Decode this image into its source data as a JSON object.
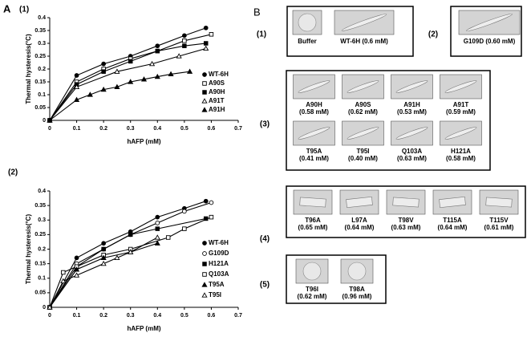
{
  "panel_a": {
    "label": "A"
  },
  "chart_data": [
    {
      "type": "scatter",
      "title": "(1)",
      "xlabel": "hAFP (mM)",
      "ylabel": "Thermal hysteresis(°C)",
      "xlim": [
        0,
        0.7
      ],
      "xticks": [
        0,
        0.1,
        0.2,
        0.3,
        0.4,
        0.5,
        0.6,
        0.7
      ],
      "ylim": [
        0,
        0.4
      ],
      "yticks": [
        0,
        0.05,
        0.1,
        0.15,
        0.2,
        0.25,
        0.3,
        0.35,
        0.4
      ],
      "legend": "lower right",
      "series": [
        {
          "name": "WT-6H",
          "color": "#000000",
          "marker": "circle",
          "filled": true,
          "x": [
            0,
            0.1,
            0.2,
            0.3,
            0.4,
            0.5,
            0.58
          ],
          "values": [
            0,
            0.175,
            0.22,
            0.25,
            0.29,
            0.33,
            0.36
          ]
        },
        {
          "name": "A90S",
          "color": "#000000",
          "marker": "square",
          "filled": false,
          "x": [
            0,
            0.1,
            0.2,
            0.3,
            0.4,
            0.5,
            0.6
          ],
          "values": [
            0,
            0.15,
            0.2,
            0.24,
            0.27,
            0.31,
            0.335
          ]
        },
        {
          "name": "A90H",
          "color": "#000000",
          "marker": "square",
          "filled": true,
          "x": [
            0,
            0.1,
            0.2,
            0.3,
            0.4,
            0.5,
            0.58
          ],
          "values": [
            0,
            0.14,
            0.19,
            0.23,
            0.27,
            0.29,
            0.3
          ]
        },
        {
          "name": "A91T",
          "color": "#000000",
          "marker": "triangle",
          "filled": false,
          "x": [
            0,
            0.1,
            0.25,
            0.38,
            0.48,
            0.58
          ],
          "values": [
            0,
            0.13,
            0.19,
            0.22,
            0.25,
            0.28
          ]
        },
        {
          "name": "A91H",
          "color": "#000000",
          "marker": "triangle",
          "filled": true,
          "x": [
            0,
            0.1,
            0.15,
            0.2,
            0.25,
            0.3,
            0.35,
            0.4,
            0.45,
            0.52
          ],
          "values": [
            0,
            0.08,
            0.1,
            0.12,
            0.13,
            0.15,
            0.16,
            0.17,
            0.18,
            0.19
          ]
        }
      ]
    },
    {
      "type": "scatter",
      "title": "(2)",
      "xlabel": "hAFP (mM)",
      "ylabel": "Thermal hysteresis(°C)",
      "xlim": [
        0,
        0.7
      ],
      "xticks": [
        0,
        0.1,
        0.2,
        0.3,
        0.4,
        0.5,
        0.6,
        0.7
      ],
      "ylim": [
        0,
        0.4
      ],
      "yticks": [
        0,
        0.05,
        0.1,
        0.15,
        0.2,
        0.25,
        0.3,
        0.35,
        0.4
      ],
      "legend": "lower right",
      "series": [
        {
          "name": "WT-6H",
          "color": "#000000",
          "marker": "circle",
          "filled": true,
          "x": [
            0,
            0.1,
            0.2,
            0.3,
            0.4,
            0.5,
            0.58
          ],
          "values": [
            0,
            0.17,
            0.22,
            0.26,
            0.31,
            0.34,
            0.365
          ]
        },
        {
          "name": "G109D",
          "color": "#000000",
          "marker": "circle",
          "filled": false,
          "x": [
            0,
            0.1,
            0.2,
            0.3,
            0.4,
            0.5,
            0.6
          ],
          "values": [
            0,
            0.15,
            0.2,
            0.25,
            0.29,
            0.33,
            0.36
          ]
        },
        {
          "name": "H121A",
          "color": "#000000",
          "marker": "square",
          "filled": true,
          "x": [
            0,
            0.1,
            0.2,
            0.3,
            0.4,
            0.58
          ],
          "values": [
            0,
            0.14,
            0.2,
            0.25,
            0.27,
            0.305
          ]
        },
        {
          "name": "Q103A",
          "color": "#000000",
          "marker": "square",
          "filled": false,
          "x": [
            0,
            0.05,
            0.1,
            0.2,
            0.3,
            0.44,
            0.5,
            0.6
          ],
          "values": [
            0,
            0.12,
            0.14,
            0.18,
            0.2,
            0.24,
            0.27,
            0.31
          ]
        },
        {
          "name": "T95A",
          "color": "#000000",
          "marker": "triangle",
          "filled": true,
          "x": [
            0,
            0.1,
            0.2,
            0.3,
            0.4
          ],
          "values": [
            0,
            0.13,
            0.17,
            0.19,
            0.22
          ]
        },
        {
          "name": "T95I",
          "color": "#000000",
          "marker": "triangle",
          "filled": false,
          "x": [
            0,
            0.05,
            0.1,
            0.2,
            0.25,
            0.3,
            0.4
          ],
          "values": [
            0,
            0.09,
            0.11,
            0.15,
            0.17,
            0.19,
            0.24
          ]
        }
      ]
    }
  ],
  "panel_b": {
    "label": "B",
    "groups": [
      {
        "label": "(1)",
        "items": [
          {
            "name": "Buffer"
          },
          {
            "name": "WT-6H",
            "conc": "(0.6 mM)"
          }
        ]
      },
      {
        "label": "(2)",
        "items": [
          {
            "name": "G109D",
            "conc": "(0.60 mM)"
          }
        ]
      },
      {
        "label": "(3)",
        "items": [
          {
            "name": "A90H",
            "conc": "(0.58 mM)"
          },
          {
            "name": "A90S",
            "conc": "(0.62 mM)"
          },
          {
            "name": "A91H",
            "conc": "(0.53 mM)"
          },
          {
            "name": "A91T",
            "conc": "(0.59 mM)"
          },
          {
            "name": "T95A",
            "conc": "(0.41 mM)"
          },
          {
            "name": "T95I",
            "conc": "(0.40 mM)"
          },
          {
            "name": "Q103A",
            "conc": "(0.63 mM)"
          },
          {
            "name": "H121A",
            "conc": "(0.58 mM)"
          }
        ]
      },
      {
        "label": "(4)",
        "items": [
          {
            "name": "T96A",
            "conc": "(0.65 mM)"
          },
          {
            "name": "L97A",
            "conc": "(0.64 mM)"
          },
          {
            "name": "T98V",
            "conc": "(0.63 mM)"
          },
          {
            "name": "T115A",
            "conc": "(0.64 mM)"
          },
          {
            "name": "T115V",
            "conc": "(0.61 mM)"
          }
        ]
      },
      {
        "label": "(5)",
        "items": [
          {
            "name": "T96I",
            "conc": "(0.62 mM)"
          },
          {
            "name": "T98A",
            "conc": "(0.96 mM)"
          }
        ]
      }
    ]
  }
}
